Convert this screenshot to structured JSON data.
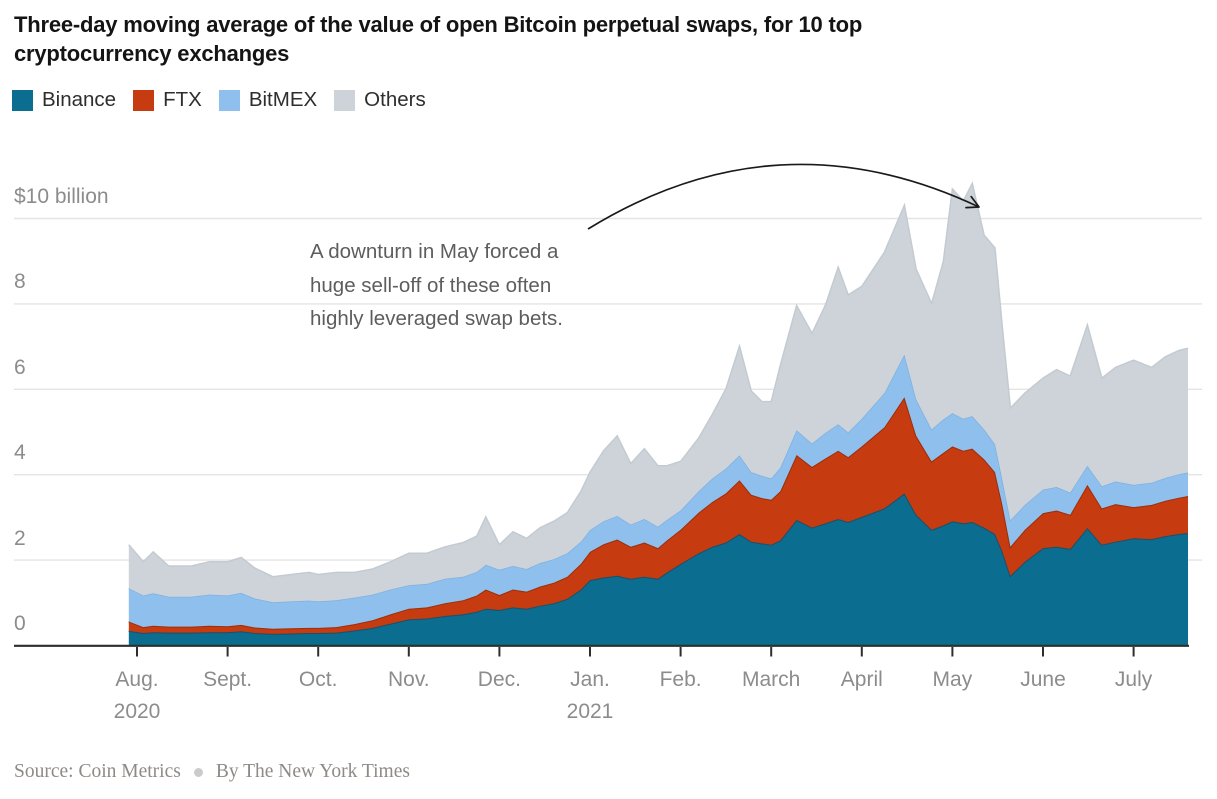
{
  "title_lines": [
    "Three-day moving average of the value of open Bitcoin perpetual swaps, for 10 top",
    "cryptocurrency exchanges"
  ],
  "legend": {
    "items": [
      {
        "label": "Binance",
        "color": "#0b6d90"
      },
      {
        "label": "FTX",
        "color": "#c63b10"
      },
      {
        "label": "BitMEX",
        "color": "#8fc0ed"
      },
      {
        "label": "Others",
        "color": "#cdd3d9"
      }
    ]
  },
  "annotation": {
    "lines": [
      "A downturn in May forced a",
      "huge sell-off of these often",
      "highly leveraged swap bets."
    ]
  },
  "source": {
    "credit": "Source: Coin Metrics",
    "byline": "By The New York Times"
  },
  "chart_data": {
    "type": "area",
    "stacked": true,
    "title": "Three-day moving average of the value of open Bitcoin perpetual swaps, for 10 top cryptocurrency exchanges",
    "unit": "billions of U.S. dollars",
    "ylim": [
      0,
      11
    ],
    "grid": true,
    "y_ticks": [
      {
        "value": 0,
        "label": "0"
      },
      {
        "value": 2,
        "label": "2"
      },
      {
        "value": 4,
        "label": "4"
      },
      {
        "value": 6,
        "label": "6"
      },
      {
        "value": 8,
        "label": "8"
      },
      {
        "value": 10,
        "label": "$10 billion"
      }
    ],
    "x_ticks": [
      {
        "month": "Aug.",
        "year": "2020"
      },
      {
        "month": "Sept."
      },
      {
        "month": "Oct."
      },
      {
        "month": "Nov."
      },
      {
        "month": "Dec."
      },
      {
        "month": "Jan.",
        "year": "2021"
      },
      {
        "month": "Feb."
      },
      {
        "month": "March"
      },
      {
        "month": "April"
      },
      {
        "month": "May"
      },
      {
        "month": "June"
      },
      {
        "month": "July"
      }
    ],
    "series": [
      {
        "key": "binance",
        "name": "Binance",
        "color": "#0b6d90",
        "edge": "#1a5069"
      },
      {
        "key": "ftx",
        "name": "FTX",
        "color": "#c63b10",
        "edge": "#9e2e08"
      },
      {
        "key": "bitmex",
        "name": "BitMEX",
        "color": "#8fc0ed",
        "edge": "#7db1e2"
      },
      {
        "key": "others",
        "name": "Others",
        "color": "#cdd3d9",
        "edge": "#c3cbd2"
      }
    ],
    "columns": [
      "months_since_aug_2020",
      "binance",
      "ftx",
      "bitmex",
      "others"
    ],
    "points": [
      [
        -0.09,
        0.33,
        0.22,
        0.78,
        1.02
      ],
      [
        0.07,
        0.28,
        0.14,
        0.74,
        0.79
      ],
      [
        0.18,
        0.3,
        0.15,
        0.76,
        0.97
      ],
      [
        0.35,
        0.29,
        0.14,
        0.7,
        0.72
      ],
      [
        0.6,
        0.29,
        0.14,
        0.7,
        0.72
      ],
      [
        0.8,
        0.3,
        0.15,
        0.73,
        0.77
      ],
      [
        1.0,
        0.3,
        0.14,
        0.72,
        0.79
      ],
      [
        1.15,
        0.32,
        0.15,
        0.75,
        0.83
      ],
      [
        1.3,
        0.28,
        0.13,
        0.68,
        0.71
      ],
      [
        1.5,
        0.26,
        0.12,
        0.62,
        0.6
      ],
      [
        1.7,
        0.27,
        0.12,
        0.63,
        0.63
      ],
      [
        1.9,
        0.28,
        0.12,
        0.64,
        0.66
      ],
      [
        2.0,
        0.28,
        0.12,
        0.62,
        0.63
      ],
      [
        2.2,
        0.29,
        0.13,
        0.63,
        0.65
      ],
      [
        2.4,
        0.34,
        0.15,
        0.62,
        0.59
      ],
      [
        2.6,
        0.4,
        0.18,
        0.6,
        0.6
      ],
      [
        2.8,
        0.5,
        0.22,
        0.58,
        0.65
      ],
      [
        3.0,
        0.6,
        0.25,
        0.55,
        0.75
      ],
      [
        3.2,
        0.62,
        0.26,
        0.55,
        0.72
      ],
      [
        3.4,
        0.68,
        0.3,
        0.57,
        0.75
      ],
      [
        3.6,
        0.72,
        0.33,
        0.55,
        0.8
      ],
      [
        3.75,
        0.78,
        0.38,
        0.55,
        0.84
      ],
      [
        3.85,
        0.85,
        0.45,
        0.58,
        1.12
      ],
      [
        4.0,
        0.82,
        0.35,
        0.59,
        0.59
      ],
      [
        4.15,
        0.88,
        0.42,
        0.55,
        0.8
      ],
      [
        4.3,
        0.85,
        0.4,
        0.53,
        0.72
      ],
      [
        4.45,
        0.92,
        0.45,
        0.55,
        0.83
      ],
      [
        4.6,
        0.98,
        0.48,
        0.55,
        0.89
      ],
      [
        4.75,
        1.08,
        0.52,
        0.55,
        0.95
      ],
      [
        4.9,
        1.3,
        0.6,
        0.52,
        1.18
      ],
      [
        5.0,
        1.52,
        0.66,
        0.51,
        1.36
      ],
      [
        5.15,
        1.58,
        0.78,
        0.54,
        1.65
      ],
      [
        5.3,
        1.62,
        0.85,
        0.55,
        1.88
      ],
      [
        5.45,
        1.55,
        0.75,
        0.52,
        1.43
      ],
      [
        5.6,
        1.6,
        0.8,
        0.55,
        1.65
      ],
      [
        5.75,
        1.55,
        0.72,
        0.5,
        1.43
      ],
      [
        5.85,
        1.7,
        0.75,
        0.48,
        1.27
      ],
      [
        6.0,
        1.9,
        0.8,
        0.45,
        1.15
      ],
      [
        6.2,
        2.15,
        0.95,
        0.5,
        1.25
      ],
      [
        6.35,
        2.3,
        1.05,
        0.55,
        1.5
      ],
      [
        6.5,
        2.4,
        1.15,
        0.58,
        1.87
      ],
      [
        6.65,
        2.6,
        1.26,
        0.58,
        2.56
      ],
      [
        6.78,
        2.42,
        1.1,
        0.53,
        1.9
      ],
      [
        6.9,
        2.38,
        1.06,
        0.52,
        1.74
      ],
      [
        7.0,
        2.35,
        1.05,
        0.5,
        1.8
      ],
      [
        7.1,
        2.45,
        1.15,
        0.55,
        2.4
      ],
      [
        7.28,
        2.93,
        1.52,
        0.58,
        2.92
      ],
      [
        7.45,
        2.75,
        1.42,
        0.55,
        2.58
      ],
      [
        7.6,
        2.85,
        1.52,
        0.6,
        3.0
      ],
      [
        7.74,
        2.95,
        1.6,
        0.62,
        3.68
      ],
      [
        7.85,
        2.88,
        1.52,
        0.58,
        3.22
      ],
      [
        8.0,
        3.0,
        1.65,
        0.65,
        3.1
      ],
      [
        8.25,
        3.2,
        1.9,
        0.8,
        3.3
      ],
      [
        8.47,
        3.55,
        2.25,
        1.0,
        3.5
      ],
      [
        8.6,
        3.05,
        1.85,
        0.85,
        3.05
      ],
      [
        8.77,
        2.7,
        1.6,
        0.75,
        2.95
      ],
      [
        8.9,
        2.8,
        1.7,
        0.78,
        3.7
      ],
      [
        9.0,
        2.9,
        1.75,
        0.78,
        5.25
      ],
      [
        9.12,
        2.85,
        1.7,
        0.75,
        5.1
      ],
      [
        9.22,
        2.88,
        1.72,
        0.76,
        5.45
      ],
      [
        9.35,
        2.75,
        1.6,
        0.7,
        4.55
      ],
      [
        9.47,
        2.6,
        1.45,
        0.65,
        4.6
      ],
      [
        9.55,
        2.2,
        1.1,
        0.58,
        3.6
      ],
      [
        9.64,
        1.62,
        0.68,
        0.62,
        2.63
      ],
      [
        9.8,
        1.95,
        0.75,
        0.58,
        2.62
      ],
      [
        10.0,
        2.27,
        0.82,
        0.55,
        2.61
      ],
      [
        10.15,
        2.3,
        0.85,
        0.55,
        2.75
      ],
      [
        10.3,
        2.25,
        0.8,
        0.52,
        2.73
      ],
      [
        10.49,
        2.74,
        1.01,
        0.45,
        3.3
      ],
      [
        10.65,
        2.35,
        0.85,
        0.52,
        2.53
      ],
      [
        10.8,
        2.42,
        0.88,
        0.53,
        2.67
      ],
      [
        11.0,
        2.5,
        0.73,
        0.52,
        2.92
      ],
      [
        11.2,
        2.48,
        0.8,
        0.52,
        2.7
      ],
      [
        11.35,
        2.55,
        0.83,
        0.53,
        2.84
      ],
      [
        11.5,
        2.6,
        0.85,
        0.55,
        2.9
      ],
      [
        11.6,
        2.62,
        0.87,
        0.55,
        2.91
      ]
    ]
  }
}
